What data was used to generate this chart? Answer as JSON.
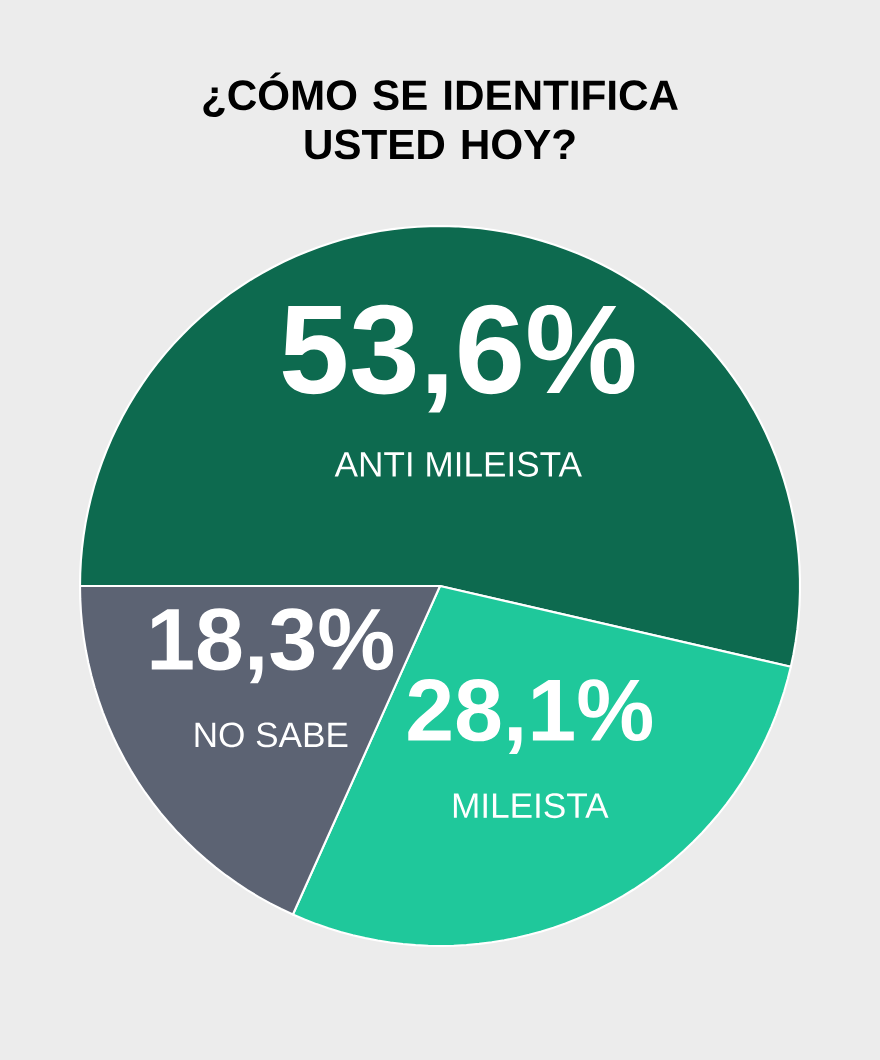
{
  "chart_data": {
    "type": "pie",
    "title": "¿CÓMO SE IDENTIFICA USTED HOY?",
    "categories": [
      "ANTI MILEISTA",
      "MILEISTA",
      "NO SABE"
    ],
    "values": [
      53.6,
      28.1,
      18.3
    ],
    "colors": [
      "#0d6a4f",
      "#1fc89b",
      "#5c6373"
    ],
    "value_labels": [
      "53,6%",
      "28,1%",
      "18,3%"
    ]
  }
}
